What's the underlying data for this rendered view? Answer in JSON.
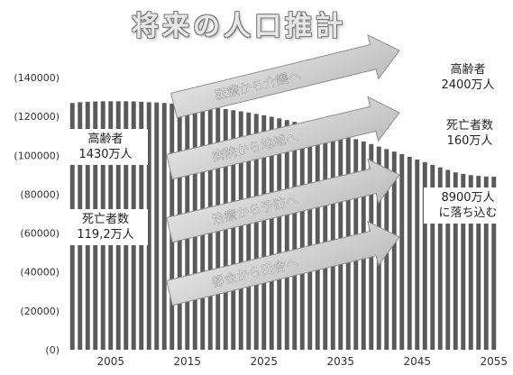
{
  "title": "将来の人口推計",
  "chart_data": {
    "type": "bar",
    "x": [
      2000,
      2001,
      2002,
      2003,
      2004,
      2005,
      2006,
      2007,
      2008,
      2009,
      2010,
      2011,
      2012,
      2013,
      2014,
      2015,
      2016,
      2017,
      2018,
      2019,
      2020,
      2021,
      2022,
      2023,
      2024,
      2025,
      2026,
      2027,
      2028,
      2029,
      2030,
      2031,
      2032,
      2033,
      2034,
      2035,
      2036,
      2037,
      2038,
      2039,
      2040,
      2041,
      2042,
      2043,
      2044,
      2045,
      2046,
      2047,
      2048,
      2049,
      2050,
      2051,
      2052,
      2053,
      2054,
      2055
    ],
    "values": [
      126900,
      127300,
      127500,
      127700,
      127800,
      127800,
      127800,
      127800,
      127700,
      127500,
      127300,
      127200,
      126900,
      126600,
      126300,
      126000,
      125600,
      125200,
      124800,
      124300,
      123800,
      123200,
      122600,
      122000,
      121300,
      120600,
      119800,
      119000,
      118100,
      117200,
      116200,
      115200,
      114100,
      113000,
      111900,
      110700,
      109500,
      108300,
      107100,
      105800,
      104500,
      103200,
      101900,
      100600,
      99200,
      97800,
      96500,
      95100,
      93800,
      92500,
      91200,
      90400,
      89800,
      89400,
      89100,
      89000
    ],
    "tick_labels": [
      "2005",
      "2015",
      "2025",
      "2035",
      "2045",
      "2055"
    ],
    "tick_years": [
      2005,
      2015,
      2025,
      2035,
      2045,
      2055
    ],
    "y_ticks": [
      0,
      20000,
      40000,
      60000,
      80000,
      100000,
      120000,
      140000
    ],
    "y_tick_labels": [
      "(0)",
      "(20000)",
      "(40000)",
      "(60000)",
      "(80000)",
      "(100000)",
      "(120000)",
      "(140000)"
    ],
    "ylim": [
      0,
      140000
    ],
    "annotations": [
      {
        "name": "callout-elderly-now",
        "lines": [
          "高齢者",
          "1430万人"
        ]
      },
      {
        "name": "callout-deaths-now",
        "lines": [
          "死亡者数",
          "119,2万人"
        ]
      },
      {
        "name": "callout-elderly-future",
        "lines": [
          "高齢者",
          "2400万人"
        ]
      },
      {
        "name": "callout-deaths-future",
        "lines": [
          "死亡者数",
          "160万人"
        ]
      },
      {
        "name": "callout-population-future",
        "lines": [
          "8900万人",
          "に落ち込む"
        ]
      }
    ],
    "arrows": [
      "医療から介護へ",
      "病院から地域へ",
      "治療から予防へ",
      "都会から田舎へ"
    ]
  },
  "colors": {
    "bar": "#5a5a5a",
    "arrow_fill": "#d2d2d2",
    "arrow_stroke": "#8f8f8f",
    "arrow_text": "#ffffff",
    "axis_text": "#333333"
  }
}
